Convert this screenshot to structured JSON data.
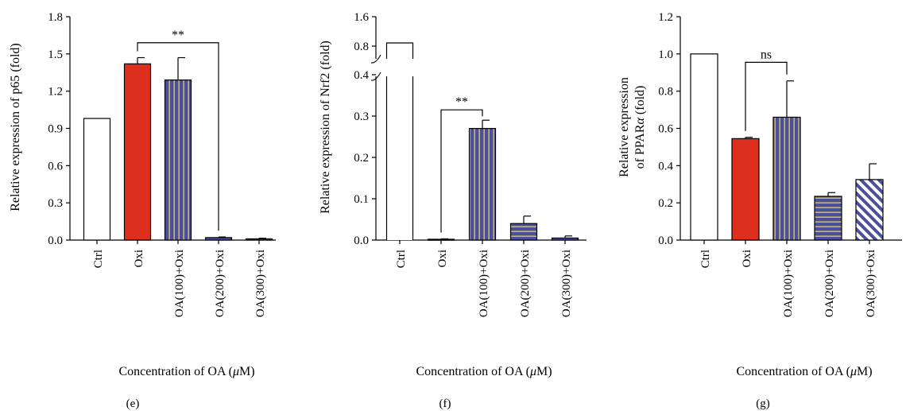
{
  "colors": {
    "white": "#ffffff",
    "red": "#dc2f1e",
    "blue": "#4b4f9c",
    "yellow": "#e8d23c",
    "black": "#000000"
  },
  "chart_data": [
    {
      "type": "bar",
      "panel_label": "(e)",
      "ylabel": "Relative expression of p65 (fold)",
      "xlabel": "Concentration of OA (μM)",
      "xlabel_prefix": "Concentration of OA (",
      "xlabel_unit": "μ",
      "xlabel_suffix": "M)",
      "categories": [
        "Ctrl",
        "Oxi",
        "OA(100)+Oxi",
        "OA(200)+Oxi",
        "OA(300)+Oxi"
      ],
      "values": [
        0.98,
        1.42,
        1.29,
        0.02,
        0.01
      ],
      "errors": [
        0,
        0.05,
        0.18,
        0.005,
        0.005
      ],
      "patterns": [
        "white",
        "red",
        "vstripe",
        "hstripe",
        "hstripe"
      ],
      "ylim": [
        0,
        1.8
      ],
      "yticks": [
        "0.0",
        "0.3",
        "0.6",
        "0.9",
        "1.2",
        "1.5",
        "1.8"
      ],
      "significance": [
        {
          "from": 1,
          "to": 3,
          "label": "**",
          "y": 1.59
        }
      ]
    },
    {
      "type": "bar",
      "panel_label": "(f)",
      "ylabel": "Relative expression of Nrf2 (fold)",
      "xlabel": "Concentration of OA (μM)",
      "xlabel_prefix": "Concentration of OA (",
      "xlabel_unit": "μ",
      "xlabel_suffix": "M)",
      "categories": [
        "Ctrl",
        "Oxi",
        "OA(100)+Oxi",
        "OA(200)+Oxi",
        "OA(300)+Oxi"
      ],
      "values": [
        1.0,
        0.002,
        0.27,
        0.04,
        0.005
      ],
      "errors": [
        0,
        0.001,
        0.02,
        0.018,
        0.005
      ],
      "patterns": [
        "white",
        "white",
        "vstripe",
        "hstripe",
        "hstripe"
      ],
      "ylim": [
        0,
        0.4
      ],
      "axis_break": {
        "upper_range": [
          0.8,
          1.6
        ]
      },
      "yticks": [
        "0.0",
        "0.1",
        "0.2",
        "0.3",
        "0.4"
      ],
      "yticks_upper": [
        "0.8",
        "1.6"
      ],
      "significance": [
        {
          "from": 1,
          "to": 2,
          "label": "**",
          "y": 0.315
        }
      ]
    },
    {
      "type": "bar",
      "panel_label": "(g)",
      "ylabel_lines": [
        "Relative expression",
        "of PPARα (fold)"
      ],
      "ylabel_line2_prefix": "of PPAR",
      "ylabel_line2_symbol": "α",
      "ylabel_line2_suffix": " (fold)",
      "xlabel": "Concentration of OA (μM)",
      "xlabel_prefix": "Concentration of OA (",
      "xlabel_unit": "μ",
      "xlabel_suffix": "M)",
      "categories": [
        "Ctrl",
        "Oxi",
        "OA(100)+Oxi",
        "OA(200)+Oxi",
        "OA(300)+Oxi"
      ],
      "values": [
        1.0,
        0.545,
        0.66,
        0.235,
        0.325
      ],
      "errors": [
        0,
        0.007,
        0.195,
        0.02,
        0.085
      ],
      "patterns": [
        "white",
        "red",
        "vstripe",
        "hstripe",
        "diagstripe"
      ],
      "ylim": [
        0,
        1.2
      ],
      "yticks": [
        "0.0",
        "0.2",
        "0.4",
        "0.6",
        "0.8",
        "1.0",
        "1.2"
      ],
      "significance": [
        {
          "from": 1,
          "to": 2,
          "label": "ns",
          "y": 0.955
        }
      ]
    }
  ]
}
